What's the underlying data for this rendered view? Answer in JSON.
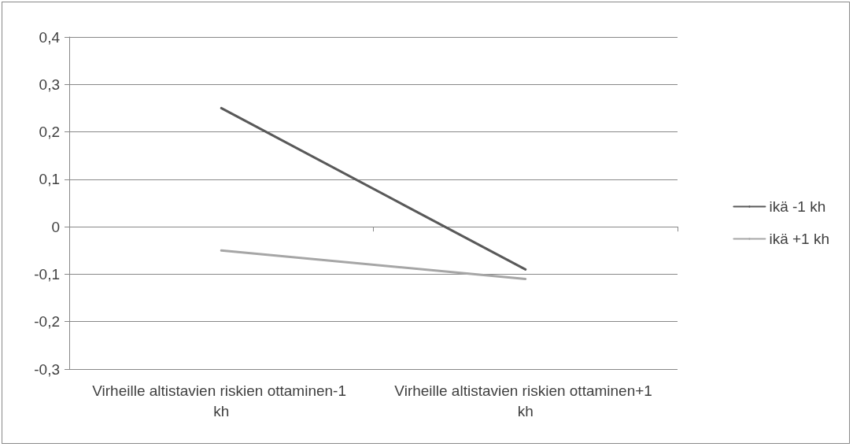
{
  "chart_data": {
    "type": "line",
    "categories": [
      "Virheille altistavien riskien ottaminen-1 kh",
      "Virheille altistavien riskien ottaminen+1 kh"
    ],
    "series": [
      {
        "name": "ikä -1 kh",
        "color": "#595959",
        "values": [
          0.25,
          -0.09
        ]
      },
      {
        "name": "ikä +1 kh",
        "color": "#a6a6a6",
        "values": [
          -0.05,
          -0.11
        ]
      }
    ],
    "ylim": [
      -0.3,
      0.4
    ],
    "yticks": [
      {
        "value": -0.3,
        "label": "-0,3"
      },
      {
        "value": -0.2,
        "label": "-0,2"
      },
      {
        "value": -0.1,
        "label": "-0,1"
      },
      0,
      {
        "value": 0.1,
        "label": "0,1"
      },
      {
        "value": 0.2,
        "label": "0,2"
      },
      {
        "value": 0.3,
        "label": "0,3"
      },
      {
        "value": 0.4,
        "label": "0,4"
      }
    ],
    "grid": "y",
    "legend": "right",
    "marker": "none",
    "line_style": "solid"
  }
}
